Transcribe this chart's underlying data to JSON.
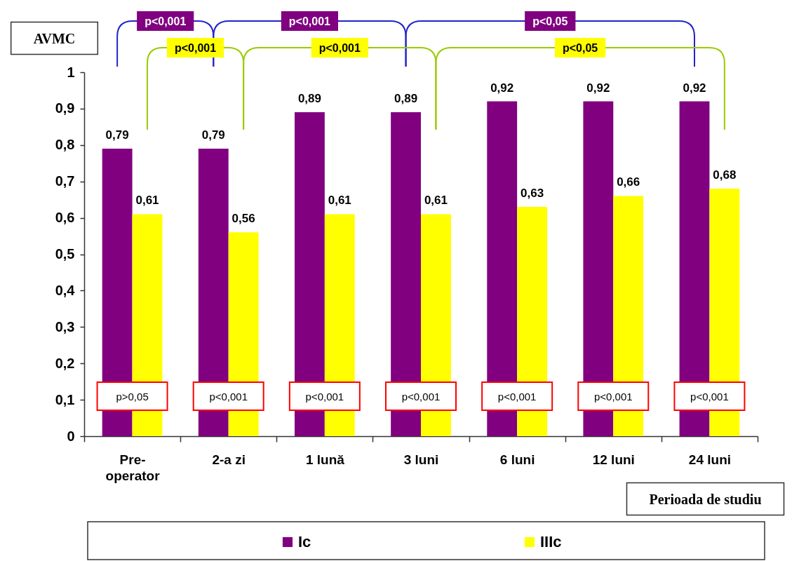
{
  "chart_data": {
    "type": "bar",
    "categories": [
      "Pre-operator",
      "2-a zi",
      "1 lună",
      "3 luni",
      "6 luni",
      "12 luni",
      "24 luni"
    ],
    "series": [
      {
        "name": "Ic",
        "color": "#800080",
        "values": [
          0.79,
          0.79,
          0.89,
          0.89,
          0.92,
          0.92,
          0.92
        ],
        "value_labels": [
          "0,79",
          "0,79",
          "0,89",
          "0,89",
          "0,92",
          "0,92",
          "0,92"
        ]
      },
      {
        "name": "IIIc",
        "color": "#ffff00",
        "values": [
          0.61,
          0.56,
          0.61,
          0.61,
          0.63,
          0.66,
          0.68
        ],
        "value_labels": [
          "0,61",
          "0,56",
          "0,61",
          "0,61",
          "0,63",
          "0,66",
          "0,68"
        ]
      }
    ],
    "xlabel": "Perioada de studiu",
    "ylabel": "AVMC",
    "ylim": [
      0,
      1
    ],
    "yticks": [
      0,
      {
        "value": 0.1,
        "label": "0,1"
      },
      {
        "value": 0.2,
        "label": "0,2"
      },
      {
        "value": 0.3,
        "label": "0,3"
      },
      {
        "value": 0.4,
        "label": "0,4"
      },
      {
        "value": 0.5,
        "label": "0,5"
      },
      {
        "value": 0.6,
        "label": "0,6"
      },
      {
        "value": 0.7,
        "label": "0,7"
      },
      {
        "value": 0.8,
        "label": "0,8"
      },
      {
        "value": 0.9,
        "label": "0,9"
      },
      1
    ],
    "annotations": [
      "p<0,001",
      "p<0,001",
      "p<0,05",
      "p<0,001",
      "p<0,001",
      "p<0,05",
      "p>0,05",
      "p<0,001",
      "p<0,001",
      "p<0,001",
      "p<0,001",
      "p<0,001",
      "p<0,001"
    ],
    "legend": "bottom"
  }
}
